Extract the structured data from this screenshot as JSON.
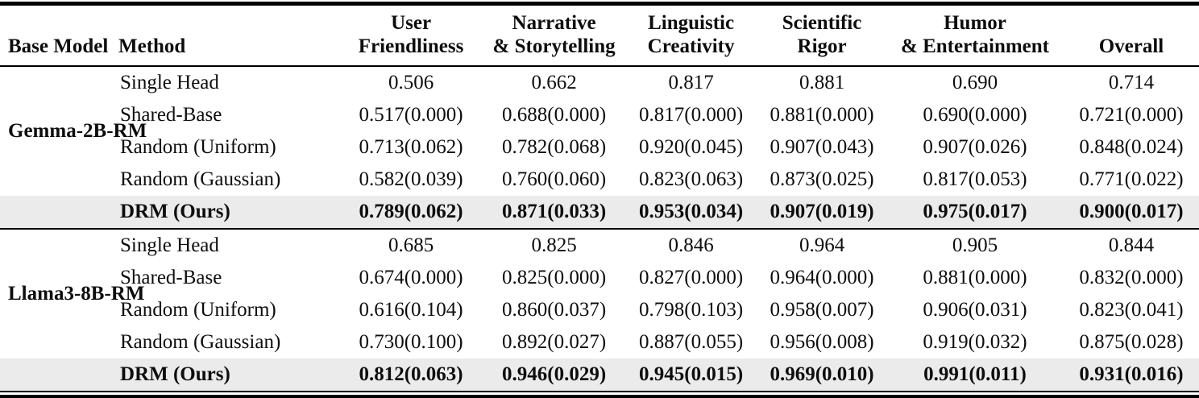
{
  "colors": {
    "highlight_row": "#ebebeb",
    "rule": "#000000",
    "text": "#0d0d0d",
    "page_background": "#ffffff"
  },
  "table": {
    "columns": [
      {
        "id": "base-model",
        "lines": [
          "Base Model"
        ]
      },
      {
        "id": "method",
        "lines": [
          "Method"
        ]
      },
      {
        "id": "user-friendliness",
        "lines": [
          "User",
          "Friendliness"
        ]
      },
      {
        "id": "narrative-storytelling",
        "lines": [
          "Narrative",
          "& Storytelling"
        ]
      },
      {
        "id": "linguistic-creativity",
        "lines": [
          "Linguistic",
          "Creativity"
        ]
      },
      {
        "id": "scientific-rigor",
        "lines": [
          "Scientific",
          "Rigor"
        ]
      },
      {
        "id": "humor-entertainment",
        "lines": [
          "Humor",
          "& Entertainment"
        ]
      },
      {
        "id": "overall",
        "lines": [
          "Overall"
        ]
      }
    ],
    "sections": [
      {
        "base_model": "Gemma-2B-RM",
        "rows": [
          {
            "method": "Single Head",
            "values": [
              "0.506",
              "0.662",
              "0.817",
              "0.881",
              "0.690",
              "0.714"
            ],
            "highlight": false
          },
          {
            "method": "Shared-Base",
            "values": [
              "0.517(0.000)",
              "0.688(0.000)",
              "0.817(0.000)",
              "0.881(0.000)",
              "0.690(0.000)",
              "0.721(0.000)"
            ],
            "highlight": false
          },
          {
            "method": "Random (Uniform)",
            "values": [
              "0.713(0.062)",
              "0.782(0.068)",
              "0.920(0.045)",
              "0.907(0.043)",
              "0.907(0.026)",
              "0.848(0.024)"
            ],
            "highlight": false
          },
          {
            "method": "Random (Gaussian)",
            "values": [
              "0.582(0.039)",
              "0.760(0.060)",
              "0.823(0.063)",
              "0.873(0.025)",
              "0.817(0.053)",
              "0.771(0.022)"
            ],
            "highlight": false
          },
          {
            "method": "DRM (Ours)",
            "values": [
              "0.789(0.062)",
              "0.871(0.033)",
              "0.953(0.034)",
              "0.907(0.019)",
              "0.975(0.017)",
              "0.900(0.017)"
            ],
            "highlight": true
          }
        ]
      },
      {
        "base_model": "Llama3-8B-RM",
        "rows": [
          {
            "method": "Single Head",
            "values": [
              "0.685",
              "0.825",
              "0.846",
              "0.964",
              "0.905",
              "0.844"
            ],
            "highlight": false
          },
          {
            "method": "Shared-Base",
            "values": [
              "0.674(0.000)",
              "0.825(0.000)",
              "0.827(0.000)",
              "0.964(0.000)",
              "0.881(0.000)",
              "0.832(0.000)"
            ],
            "highlight": false
          },
          {
            "method": "Random (Uniform)",
            "values": [
              "0.616(0.104)",
              "0.860(0.037)",
              "0.798(0.103)",
              "0.958(0.007)",
              "0.906(0.031)",
              "0.823(0.041)"
            ],
            "highlight": false
          },
          {
            "method": "Random (Gaussian)",
            "values": [
              "0.730(0.100)",
              "0.892(0.027)",
              "0.887(0.055)",
              "0.956(0.008)",
              "0.919(0.032)",
              "0.875(0.028)"
            ],
            "highlight": false
          },
          {
            "method": "DRM (Ours)",
            "values": [
              "0.812(0.063)",
              "0.946(0.029)",
              "0.945(0.015)",
              "0.969(0.010)",
              "0.991(0.011)",
              "0.931(0.016)"
            ],
            "highlight": true
          }
        ]
      }
    ]
  }
}
